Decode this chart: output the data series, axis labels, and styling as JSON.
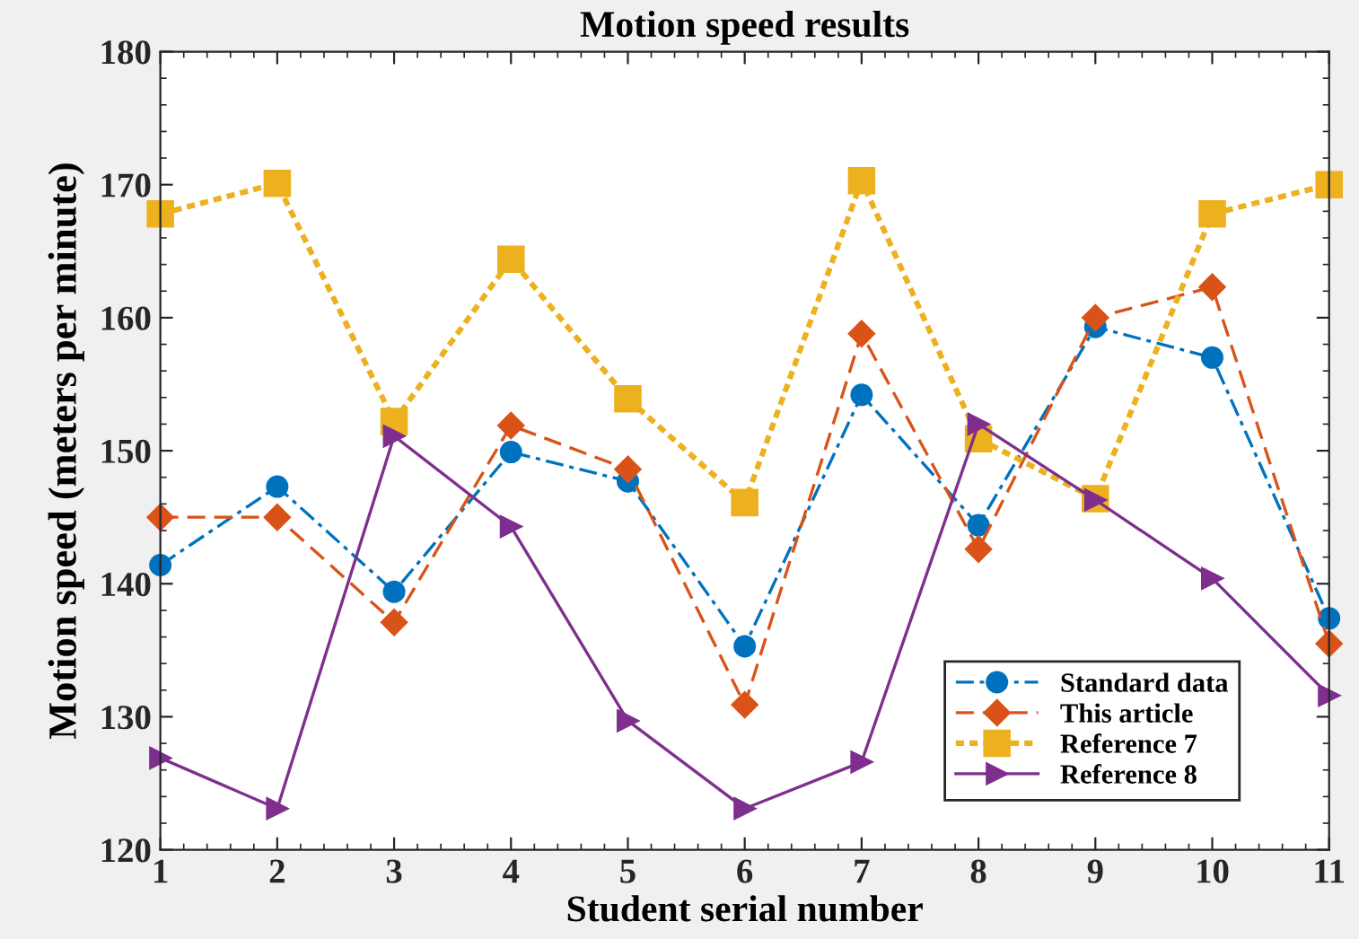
{
  "chart_data": {
    "type": "line",
    "title": "Motion speed results",
    "xlabel": "Student serial number",
    "ylabel": "Motion speed (meters per minute)",
    "x": [
      1,
      2,
      3,
      4,
      5,
      6,
      7,
      8,
      9,
      10,
      11
    ],
    "xlim": [
      1,
      11
    ],
    "xticks": [
      1,
      2,
      3,
      4,
      5,
      6,
      7,
      8,
      9,
      10,
      11
    ],
    "ylim": [
      120,
      180
    ],
    "yticks": [
      120,
      130,
      140,
      150,
      160,
      170,
      180
    ],
    "grid": false,
    "legend": "bottom right",
    "series": [
      {
        "name": "Standard data",
        "color": "#0072bd",
        "marker": "circle",
        "line_style": "dashdot",
        "values": [
          141.4,
          147.3,
          139.4,
          149.9,
          147.7,
          135.3,
          154.2,
          144.4,
          159.3,
          157.0,
          137.4
        ]
      },
      {
        "name": "This article",
        "color": "#d95319",
        "marker": "diamond",
        "line_style": "dashed",
        "values": [
          145.0,
          145.0,
          137.1,
          151.9,
          148.6,
          130.9,
          158.8,
          142.6,
          160.0,
          162.3,
          135.5
        ]
      },
      {
        "name": "Reference 7",
        "color": "#edb120",
        "marker": "square",
        "line_style": "dotted",
        "values": [
          167.8,
          170.1,
          152.2,
          164.4,
          153.9,
          146.1,
          170.3,
          150.9,
          146.4,
          167.8,
          170.0
        ]
      },
      {
        "name": "Reference 8",
        "color": "#7e2f8e",
        "marker": "triangle",
        "line_style": "solid",
        "values": [
          126.9,
          123.1,
          151.1,
          144.3,
          129.7,
          123.1,
          126.6,
          152.0,
          146.3,
          140.4,
          131.6
        ]
      }
    ]
  }
}
